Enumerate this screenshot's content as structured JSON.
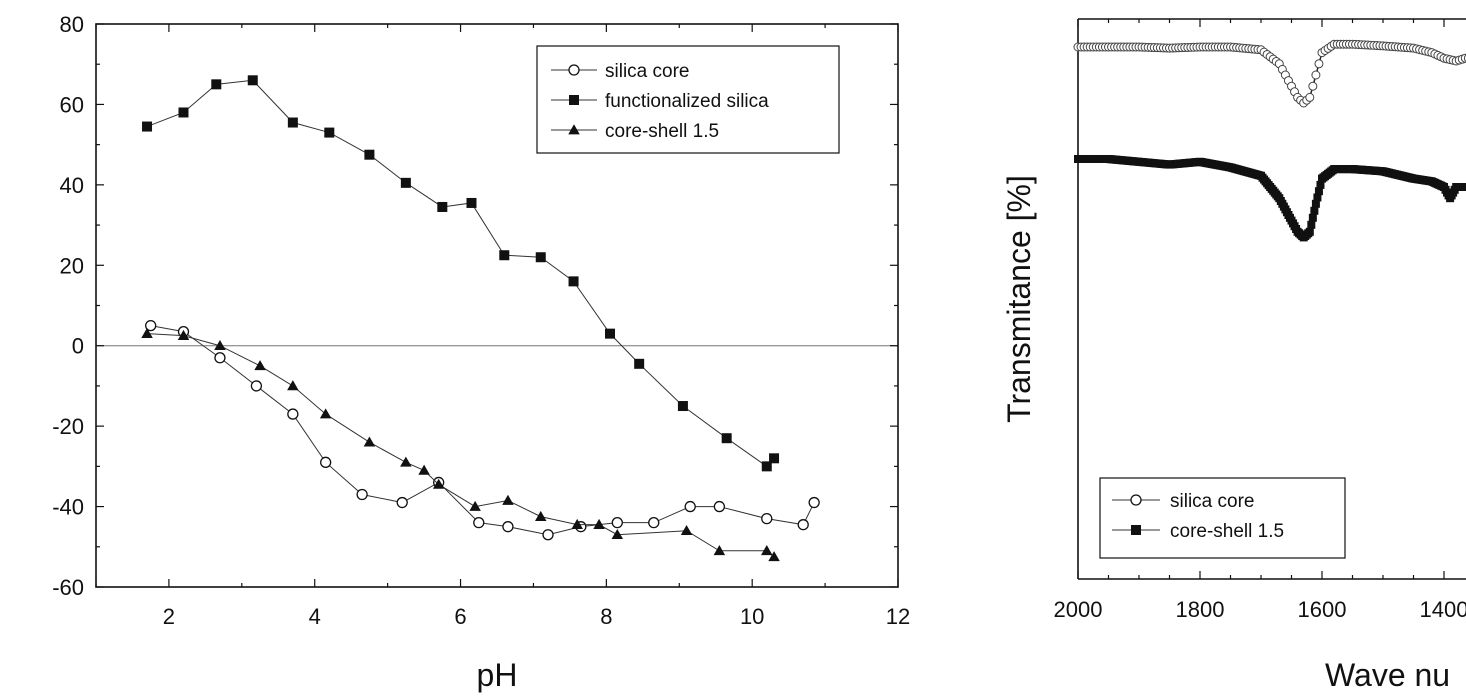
{
  "chart_data": [
    {
      "type": "line",
      "title": "",
      "xlabel": "pH",
      "ylabel": "",
      "xlim": [
        1,
        12
      ],
      "ylim": [
        -60,
        80
      ],
      "xticks": [
        "2",
        "4",
        "6",
        "8",
        "10",
        "12"
      ],
      "yticks": [
        "80",
        "60",
        "40",
        "20",
        "0",
        "-20",
        "-40",
        "-60"
      ],
      "reference_line_y": 0,
      "legend_position": "top-right",
      "series": [
        {
          "name": "silica core",
          "marker": "open-circle",
          "x": [
            1.75,
            2.2,
            2.7,
            3.2,
            3.7,
            4.15,
            4.65,
            5.2,
            5.7,
            6.25,
            6.65,
            7.2,
            7.65,
            8.15,
            8.65,
            9.15,
            9.55,
            10.2,
            10.7,
            10.85
          ],
          "y": [
            5,
            3.5,
            -3,
            -10,
            -17,
            -29,
            -37,
            -39,
            -34,
            -44,
            -45,
            -47,
            -45,
            -44,
            -44,
            -40,
            -40,
            -43,
            -44.5,
            -39
          ]
        },
        {
          "name": "functionalized silica",
          "marker": "filled-square",
          "x": [
            1.7,
            2.2,
            2.65,
            3.15,
            3.7,
            4.2,
            4.75,
            5.25,
            5.75,
            6.15,
            6.6,
            7.1,
            7.55,
            8.05,
            8.45,
            9.05,
            9.65,
            10.2,
            10.3
          ],
          "y": [
            54.5,
            58,
            65,
            66,
            55.5,
            53,
            47.5,
            40.5,
            34.5,
            35.5,
            22.5,
            22,
            16,
            3,
            -4.5,
            -15,
            -23,
            -30,
            -28
          ]
        },
        {
          "name": "core-shell 1.5",
          "marker": "filled-triangle",
          "x": [
            1.7,
            2.2,
            2.7,
            3.25,
            3.7,
            4.15,
            4.75,
            5.25,
            5.5,
            5.7,
            6.2,
            6.65,
            7.1,
            7.6,
            7.9,
            8.15,
            9.1,
            9.55,
            10.2,
            10.3
          ],
          "y": [
            3,
            2.5,
            0,
            -5,
            -10,
            -17,
            -24,
            -29,
            -31,
            -34.5,
            -40,
            -38.5,
            -42.5,
            -44.5,
            -44.5,
            -47,
            -46,
            -51,
            -51,
            -52.5
          ]
        }
      ]
    },
    {
      "type": "line",
      "title": "",
      "xlabel": "Wave nu",
      "ylabel": "Transmitance [%]",
      "xlim": [
        2000,
        1360
      ],
      "x_reversed": true,
      "xticks": [
        "2000",
        "1800",
        "1600",
        "1400"
      ],
      "yticks": [],
      "legend_position": "bottom-left",
      "series": [
        {
          "name": "silica core",
          "marker": "open-circle",
          "x": [
            2000,
            1950,
            1900,
            1850,
            1800,
            1750,
            1700,
            1670,
            1650,
            1640,
            1630,
            1620,
            1610,
            1600,
            1580,
            1550,
            1500,
            1450,
            1420,
            1400,
            1380,
            1365
          ],
          "y": [
            95,
            95,
            95,
            94.8,
            95,
            95,
            94.5,
            92,
            88,
            86,
            85,
            86,
            90,
            94,
            95.5,
            95.5,
            95.2,
            94.8,
            94,
            93,
            92.5,
            93
          ]
        },
        {
          "name": "core-shell 1.5",
          "marker": "filled-square",
          "x": [
            2000,
            1950,
            1900,
            1850,
            1800,
            1750,
            1700,
            1670,
            1650,
            1640,
            1630,
            1620,
            1610,
            1600,
            1580,
            1550,
            1500,
            1450,
            1420,
            1400,
            1390,
            1380,
            1365
          ],
          "y": [
            75,
            75,
            74.5,
            74,
            74.5,
            73.5,
            72,
            68,
            64,
            62,
            61,
            62,
            67,
            71.5,
            73.2,
            73.2,
            72.8,
            71.5,
            71,
            70,
            68,
            70,
            70
          ]
        }
      ]
    }
  ]
}
